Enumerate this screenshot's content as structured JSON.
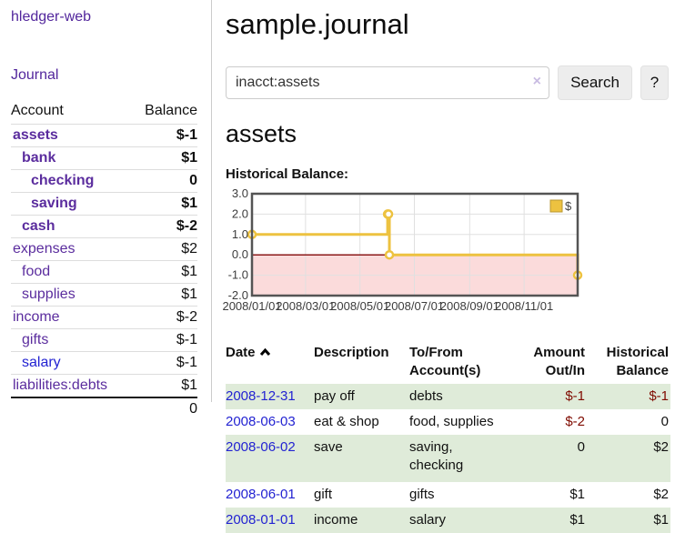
{
  "app": {
    "title": "hledger-web"
  },
  "colors": {
    "purple_link": "#5b2d9e",
    "blue_link": "#2323d2",
    "negative_strong": "#7f0b00",
    "negative_light": "#b4726b",
    "shaded_row_green": "#dfebd9",
    "divider": "#cccccc",
    "button_bg": "#ededed"
  },
  "sidebar": {
    "journal_link": "Journal",
    "accounts_table": {
      "headers": {
        "account": "Account",
        "balance": "Balance"
      },
      "rows": [
        {
          "name": "assets",
          "indent": 0,
          "bold": true,
          "balance": "$-1",
          "balance_class": "neg",
          "link": "purple"
        },
        {
          "name": "bank",
          "indent": 1,
          "bold": true,
          "balance": "$1",
          "balance_class": "",
          "link": "purple"
        },
        {
          "name": "checking",
          "indent": 2,
          "bold": true,
          "balance": "0",
          "balance_class": "",
          "link": "purple"
        },
        {
          "name": "saving",
          "indent": 2,
          "bold": true,
          "balance": "$1",
          "balance_class": "",
          "link": "purple"
        },
        {
          "name": "cash",
          "indent": 1,
          "bold": true,
          "balance": "$-2",
          "balance_class": "neg",
          "link": "purple"
        },
        {
          "name": "expenses",
          "indent": 0,
          "bold": false,
          "balance": "$2",
          "balance_class": "",
          "link": "purple"
        },
        {
          "name": "food",
          "indent": 1,
          "bold": false,
          "balance": "$1",
          "balance_class": "",
          "link": "purple"
        },
        {
          "name": "supplies",
          "indent": 1,
          "bold": false,
          "balance": "$1",
          "balance_class": "",
          "link": "purple"
        },
        {
          "name": "income",
          "indent": 0,
          "bold": false,
          "balance": "$-2",
          "balance_class": "neg-light",
          "link": "purple"
        },
        {
          "name": "gifts",
          "indent": 1,
          "bold": false,
          "balance": "$-1",
          "balance_class": "neg-light",
          "link": "purple"
        },
        {
          "name": "salary",
          "indent": 1,
          "bold": false,
          "balance": "$-1",
          "balance_class": "neg-light",
          "link": "blue"
        },
        {
          "name": "liabilities:debts",
          "indent": 0,
          "bold": false,
          "balance": "$1",
          "balance_class": "",
          "link": "purple"
        }
      ],
      "total": "0"
    }
  },
  "main": {
    "title": "sample.journal",
    "search": {
      "value": "inacct:assets",
      "clear_icon": "×",
      "button_label": "Search",
      "help_label": "?"
    },
    "account_heading": "assets",
    "chart_label": "Historical Balance:"
  },
  "chart_data": {
    "type": "line",
    "title": "Historical Balance",
    "step": true,
    "xlim_days": [
      0,
      365
    ],
    "ylim": [
      -2,
      3
    ],
    "grid": true,
    "legend": {
      "label": "$",
      "position": "top-right"
    },
    "series": [
      {
        "name": "$",
        "color": "#edc240",
        "points": [
          {
            "date": "2008-01-01",
            "day": 0,
            "value": 1
          },
          {
            "date": "2008-06-01",
            "day": 152,
            "value": 2
          },
          {
            "date": "2008-06-02",
            "day": 153,
            "value": 2
          },
          {
            "date": "2008-06-03",
            "day": 154,
            "value": 0
          },
          {
            "date": "2008-12-31",
            "day": 365,
            "value": -1
          }
        ]
      }
    ],
    "x_ticks": [
      {
        "day": 0,
        "label": "2008/01/01"
      },
      {
        "day": 60,
        "label": "2008/03/01"
      },
      {
        "day": 121,
        "label": "2008/05/01"
      },
      {
        "day": 182,
        "label": "2008/07/01"
      },
      {
        "day": 244,
        "label": "2008/09/01"
      },
      {
        "day": 305,
        "label": "2008/11/01"
      }
    ],
    "y_ticks": [
      {
        "value": 3,
        "label": "3.0"
      },
      {
        "value": 2,
        "label": "2.0"
      },
      {
        "value": 1,
        "label": "1.0"
      },
      {
        "value": 0,
        "label": "0.0"
      },
      {
        "value": -1,
        "label": "-1.0"
      },
      {
        "value": -2,
        "label": "-2.0"
      }
    ],
    "zero_line_color": "#8b1a1a",
    "negative_area_color": "#fbdbdb",
    "border_color": "#545454",
    "grid_color": "#e0e0e0",
    "tick_label_color": "#3c3c3c"
  },
  "transactions": {
    "headers": {
      "date": "Date",
      "description": "Description",
      "accounts": "To/From Account(s)",
      "amount": "Amount Out/In",
      "balance": "Historical Balance"
    },
    "rows": [
      {
        "date": "2008-12-31",
        "description": "pay off",
        "accounts": [
          "debts"
        ],
        "amount": "$-1",
        "amount_class": "neg",
        "balance": "$-1",
        "balance_class": "neg",
        "shaded": true
      },
      {
        "date": "2008-06-03",
        "description": "eat & shop",
        "accounts": [
          "food, supplies"
        ],
        "amount": "$-2",
        "amount_class": "neg",
        "balance": "0",
        "balance_class": "",
        "shaded": false
      },
      {
        "date": "2008-06-02",
        "description": "save",
        "accounts": [
          "saving,",
          "checking"
        ],
        "amount": "0",
        "amount_class": "",
        "balance": "$2",
        "balance_class": "",
        "shaded": true,
        "pad": true
      },
      {
        "date": "2008-06-01",
        "description": "gift",
        "accounts": [
          "gifts"
        ],
        "amount": "$1",
        "amount_class": "",
        "balance": "$2",
        "balance_class": "",
        "shaded": false
      },
      {
        "date": "2008-01-01",
        "description": "income",
        "accounts": [
          "salary"
        ],
        "amount": "$1",
        "amount_class": "",
        "balance": "$1",
        "balance_class": "",
        "shaded": true
      }
    ]
  }
}
